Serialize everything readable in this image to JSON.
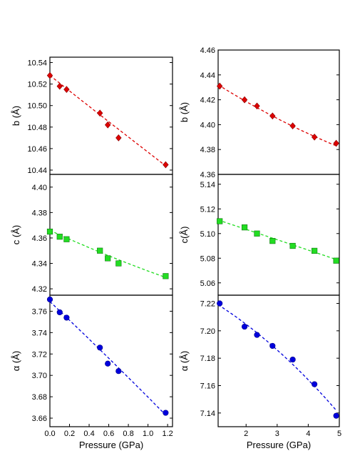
{
  "chart_data": [
    {
      "id": "left-b",
      "type": "scatter",
      "ylabel": "b (Å)",
      "xlabel": "",
      "xlim": [
        0.0,
        1.25
      ],
      "ylim": [
        10.436,
        10.545
      ],
      "yticks": [
        "10.44",
        "10.46",
        "10.48",
        "10.50",
        "10.52",
        "10.54"
      ],
      "xticks": [],
      "marker": "diamond",
      "color": "#dd0000",
      "x": [
        0.0,
        0.1,
        0.17,
        0.51,
        0.59,
        0.7,
        1.18
      ],
      "y": [
        10.528,
        10.518,
        10.515,
        10.493,
        10.482,
        10.47,
        10.445
      ],
      "fit": [
        [
          0.0,
          10.528
        ],
        [
          0.6,
          10.485
        ],
        [
          1.18,
          10.444
        ]
      ]
    },
    {
      "id": "left-c",
      "type": "scatter",
      "ylabel": "c (Å)",
      "xlabel": "",
      "xlim": [
        0.0,
        1.25
      ],
      "ylim": [
        4.315,
        4.41
      ],
      "yticks": [
        "4.32",
        "4.34",
        "4.36",
        "4.38",
        "4.40"
      ],
      "xticks": [],
      "marker": "square",
      "color": "#22dd22",
      "x": [
        0.0,
        0.1,
        0.17,
        0.51,
        0.59,
        0.7,
        1.18
      ],
      "y": [
        4.365,
        4.361,
        4.359,
        4.35,
        4.344,
        4.34,
        4.33
      ],
      "fit": [
        [
          0.0,
          4.366
        ],
        [
          0.6,
          4.346
        ],
        [
          1.18,
          4.329
        ]
      ]
    },
    {
      "id": "left-a",
      "type": "scatter",
      "ylabel": "α (Å)",
      "xlabel": "Pressure (GPa)",
      "xlim": [
        0.0,
        1.25
      ],
      "ylim": [
        3.652,
        3.775
      ],
      "yticks": [
        "3.66",
        "3.68",
        "3.70",
        "3.72",
        "3.74",
        "3.76"
      ],
      "xticks": [
        "0.0",
        "0.2",
        "0.4",
        "0.6",
        "0.8",
        "1.0",
        "1.2"
      ],
      "marker": "circle",
      "color": "#0000dd",
      "x": [
        0.0,
        0.1,
        0.17,
        0.51,
        0.59,
        0.7,
        1.18
      ],
      "y": [
        3.771,
        3.759,
        3.754,
        3.726,
        3.711,
        3.704,
        3.665
      ],
      "fit": [
        [
          0.0,
          3.769
        ],
        [
          0.6,
          3.716
        ],
        [
          1.18,
          3.663
        ]
      ]
    },
    {
      "id": "right-b",
      "type": "scatter",
      "ylabel": "b (Å)",
      "xlabel": "",
      "xlim": [
        1.1,
        5.0
      ],
      "ylim": [
        4.36,
        4.46
      ],
      "yticks": [
        "4.36",
        "4.38",
        "4.40",
        "4.42",
        "4.44",
        "4.46"
      ],
      "xticks": [],
      "marker": "diamond",
      "color": "#dd0000",
      "x": [
        1.15,
        1.95,
        2.35,
        2.85,
        3.5,
        4.2,
        4.9
      ],
      "y": [
        4.431,
        4.42,
        4.415,
        4.407,
        4.399,
        4.39,
        4.385
      ],
      "fit": [
        [
          1.1,
          4.432
        ],
        [
          3.0,
          4.405
        ],
        [
          4.9,
          4.383
        ]
      ]
    },
    {
      "id": "right-c",
      "type": "scatter",
      "ylabel": "c(Å)",
      "xlabel": "",
      "xlim": [
        1.1,
        5.0
      ],
      "ylim": [
        5.05,
        5.148
      ],
      "yticks": [
        "5.06",
        "5.08",
        "5.10",
        "5.12",
        "5.14"
      ],
      "xticks": [],
      "marker": "square",
      "color": "#22dd22",
      "x": [
        1.15,
        1.95,
        2.35,
        2.85,
        3.5,
        4.2,
        4.9
      ],
      "y": [
        5.11,
        5.105,
        5.1,
        5.094,
        5.09,
        5.086,
        5.078
      ],
      "fit": [
        [
          1.1,
          5.111
        ],
        [
          3.0,
          5.095
        ],
        [
          4.9,
          5.079
        ]
      ]
    },
    {
      "id": "right-a",
      "type": "scatter",
      "ylabel": "α (Å)",
      "xlabel": "Pressure (GPa)",
      "xlim": [
        1.1,
        5.0
      ],
      "ylim": [
        7.13,
        7.226
      ],
      "yticks": [
        "7.14",
        "7.16",
        "7.18",
        "7.20",
        "7.22"
      ],
      "xticks": [
        "2",
        "3",
        "4",
        "5"
      ],
      "marker": "circle",
      "color": "#0000dd",
      "x": [
        1.15,
        1.95,
        2.35,
        2.85,
        3.5,
        4.2,
        4.9
      ],
      "y": [
        7.22,
        7.203,
        7.197,
        7.189,
        7.179,
        7.161,
        7.138
      ],
      "fit": [
        [
          1.1,
          7.219
        ],
        [
          3.0,
          7.186
        ],
        [
          4.9,
          7.142
        ]
      ]
    }
  ]
}
